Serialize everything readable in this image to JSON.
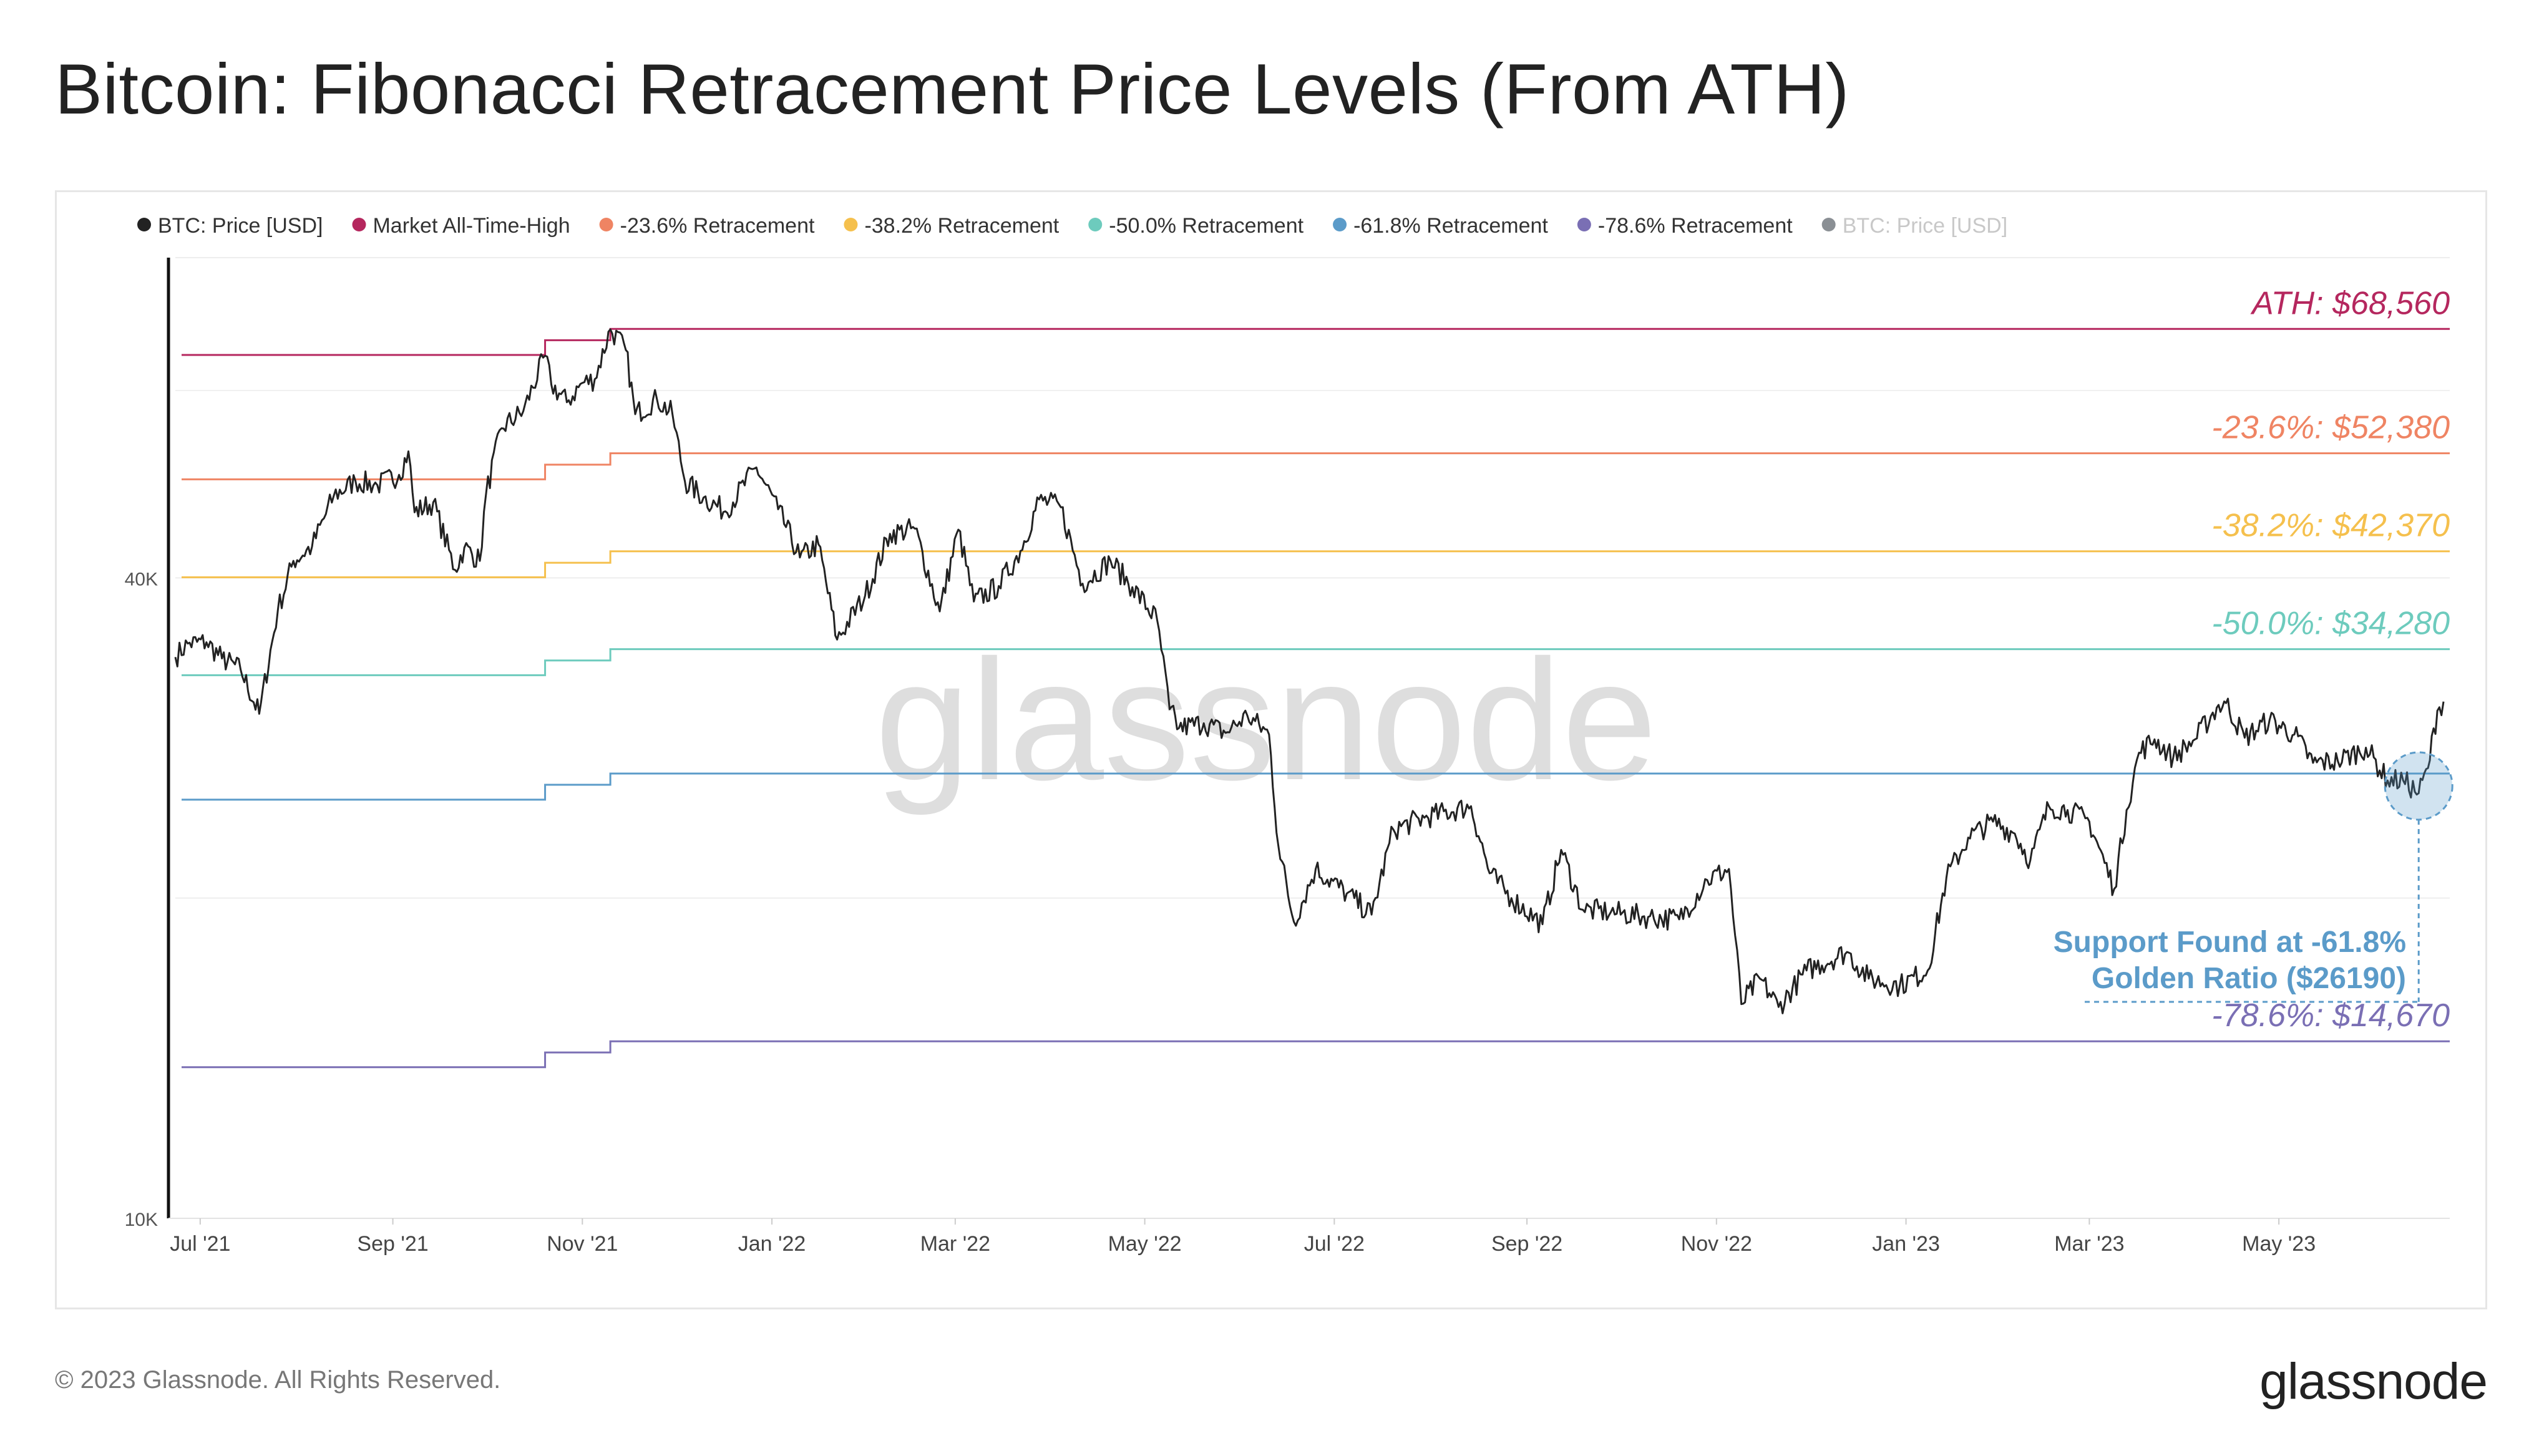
{
  "title": "Bitcoin: Fibonacci Retracement Price Levels (From ATH)",
  "footer": {
    "copyright": "© 2023 Glassnode. All Rights Reserved.",
    "logo_text": "glassnode"
  },
  "watermark": "glassnode",
  "annotation": {
    "line1": "Support Found at -61.8%",
    "line2": "Golden Ratio ($26190)",
    "x": "2023-06-15",
    "y": 26190,
    "color": "#5b9bc9"
  },
  "chart_data": {
    "type": "line",
    "y_scale": "log",
    "ylim": [
      10000,
      80000
    ],
    "xlim": [
      "2021-06-23",
      "2023-06-25"
    ],
    "grid": true,
    "legend_position": "top",
    "y_ticks": [
      {
        "value": 10000,
        "label": "10K"
      },
      {
        "value": 40000,
        "label": "40K"
      }
    ],
    "x_ticks": [
      {
        "date": "2021-07-01",
        "label": "Jul '21"
      },
      {
        "date": "2021-09-01",
        "label": "Sep '21"
      },
      {
        "date": "2021-11-01",
        "label": "Nov '21"
      },
      {
        "date": "2022-01-01",
        "label": "Jan '22"
      },
      {
        "date": "2022-03-01",
        "label": "Mar '22"
      },
      {
        "date": "2022-05-01",
        "label": "May '22"
      },
      {
        "date": "2022-07-01",
        "label": "Jul '22"
      },
      {
        "date": "2022-09-01",
        "label": "Sep '22"
      },
      {
        "date": "2022-11-01",
        "label": "Nov '22"
      },
      {
        "date": "2023-01-01",
        "label": "Jan '23"
      },
      {
        "date": "2023-03-01",
        "label": "Mar '23"
      },
      {
        "date": "2023-05-01",
        "label": "May '23"
      }
    ],
    "legend": [
      {
        "name": "BTC: Price [USD]",
        "color": "#222222",
        "text_color": "#333333"
      },
      {
        "name": "Market All-Time-High",
        "color": "#b5275e",
        "text_color": "#333333"
      },
      {
        "name": "-23.6% Retracement",
        "color": "#ef8463",
        "text_color": "#333333"
      },
      {
        "name": "-38.2% Retracement",
        "color": "#f5c04d",
        "text_color": "#333333"
      },
      {
        "name": "-50.0% Retracement",
        "color": "#6dcbbd",
        "text_color": "#333333"
      },
      {
        "name": "-61.8% Retracement",
        "color": "#5b9bc9",
        "text_color": "#333333"
      },
      {
        "name": "-78.6% Retracement",
        "color": "#7a6fb4",
        "text_color": "#333333"
      },
      {
        "name": "BTC: Price [USD]",
        "color": "#8a8f94",
        "text_color": "#c8c8c8"
      }
    ],
    "level_labels": [
      {
        "text": "ATH: $68,560",
        "color": "#b5275e",
        "value": 68560
      },
      {
        "text": "-23.6%: $52,380",
        "color": "#ef8463",
        "value": 52380
      },
      {
        "text": "-38.2%: $42,370",
        "color": "#f5c04d",
        "value": 42370
      },
      {
        "text": "-50.0%: $34,280",
        "color": "#6dcbbd",
        "value": 34280
      },
      {
        "text": "-78.6%: $14,670",
        "color": "#7a6fb4",
        "value": 14670
      }
    ],
    "levels": [
      {
        "name": "Market All-Time-High",
        "color": "#b5275e",
        "steps": [
          [
            "2021-06-23",
            64800
          ],
          [
            "2021-10-20",
            66900
          ],
          [
            "2021-11-10",
            68560
          ]
        ]
      },
      {
        "name": "-23.6% Retracement",
        "color": "#ef8463",
        "steps": [
          [
            "2021-06-23",
            49510
          ],
          [
            "2021-10-20",
            51110
          ],
          [
            "2021-11-10",
            52380
          ]
        ]
      },
      {
        "name": "-38.2% Retracement",
        "color": "#f5c04d",
        "steps": [
          [
            "2021-06-23",
            40050
          ],
          [
            "2021-10-20",
            41330
          ],
          [
            "2021-11-10",
            42370
          ]
        ]
      },
      {
        "name": "-50.0% Retracement",
        "color": "#6dcbbd",
        "steps": [
          [
            "2021-06-23",
            32400
          ],
          [
            "2021-10-20",
            33450
          ],
          [
            "2021-11-10",
            34280
          ]
        ]
      },
      {
        "name": "-61.8% Retracement",
        "color": "#5b9bc9",
        "steps": [
          [
            "2021-06-23",
            24750
          ],
          [
            "2021-10-20",
            25560
          ],
          [
            "2021-11-10",
            26190
          ]
        ]
      },
      {
        "name": "-78.6% Retracement",
        "color": "#7a6fb4",
        "steps": [
          [
            "2021-06-23",
            13870
          ],
          [
            "2021-10-20",
            14320
          ],
          [
            "2021-11-10",
            14670
          ]
        ]
      }
    ],
    "series": [
      {
        "name": "BTC: Price [USD]",
        "color": "#222222",
        "points": [
          [
            "2021-06-23",
            33700
          ],
          [
            "2021-06-27",
            34700
          ],
          [
            "2021-07-03",
            34800
          ],
          [
            "2021-07-08",
            33600
          ],
          [
            "2021-07-14",
            32800
          ],
          [
            "2021-07-20",
            29800
          ],
          [
            "2021-07-26",
            37300
          ],
          [
            "2021-07-31",
            41500
          ],
          [
            "2021-08-06",
            42800
          ],
          [
            "2021-08-13",
            47800
          ],
          [
            "2021-08-20",
            49300
          ],
          [
            "2021-08-27",
            48900
          ],
          [
            "2021-09-03",
            50000
          ],
          [
            "2021-09-06",
            52600
          ],
          [
            "2021-09-08",
            46100
          ],
          [
            "2021-09-14",
            47100
          ],
          [
            "2021-09-21",
            40700
          ],
          [
            "2021-09-24",
            42700
          ],
          [
            "2021-09-29",
            41500
          ],
          [
            "2021-10-01",
            48000
          ],
          [
            "2021-10-06",
            55300
          ],
          [
            "2021-10-13",
            57400
          ],
          [
            "2021-10-20",
            64700
          ],
          [
            "2021-10-22",
            60800
          ],
          [
            "2021-10-27",
            58500
          ],
          [
            "2021-11-01",
            61000
          ],
          [
            "2021-11-05",
            61500
          ],
          [
            "2021-11-10",
            68500
          ],
          [
            "2021-11-15",
            65500
          ],
          [
            "2021-11-18",
            57000
          ],
          [
            "2021-11-25",
            58900
          ],
          [
            "2021-11-30",
            57000
          ],
          [
            "2021-12-04",
            49300
          ],
          [
            "2021-12-10",
            47600
          ],
          [
            "2021-12-17",
            46200
          ],
          [
            "2021-12-27",
            50800
          ],
          [
            "2022-01-03",
            46400
          ],
          [
            "2022-01-10",
            41800
          ],
          [
            "2022-01-16",
            43000
          ],
          [
            "2022-01-22",
            35000
          ],
          [
            "2022-01-31",
            38500
          ],
          [
            "2022-02-08",
            44000
          ],
          [
            "2022-02-16",
            44500
          ],
          [
            "2022-02-24",
            37200
          ],
          [
            "2022-03-02",
            44400
          ],
          [
            "2022-03-07",
            38000
          ],
          [
            "2022-03-15",
            39300
          ],
          [
            "2022-03-22",
            42400
          ],
          [
            "2022-03-28",
            47400
          ],
          [
            "2022-04-04",
            46600
          ],
          [
            "2022-04-11",
            39500
          ],
          [
            "2022-04-20",
            41500
          ],
          [
            "2022-04-27",
            39200
          ],
          [
            "2022-05-05",
            36500
          ],
          [
            "2022-05-09",
            30100
          ],
          [
            "2022-05-12",
            28900
          ],
          [
            "2022-05-20",
            29200
          ],
          [
            "2022-05-27",
            28600
          ],
          [
            "2022-06-03",
            29700
          ],
          [
            "2022-06-10",
            28500
          ],
          [
            "2022-06-13",
            22400
          ],
          [
            "2022-06-18",
            19000
          ],
          [
            "2022-06-25",
            21300
          ],
          [
            "2022-07-05",
            20200
          ],
          [
            "2022-07-13",
            19300
          ],
          [
            "2022-07-20",
            23200
          ],
          [
            "2022-07-30",
            23800
          ],
          [
            "2022-08-14",
            24400
          ],
          [
            "2022-08-20",
            21100
          ],
          [
            "2022-08-27",
            20000
          ],
          [
            "2022-09-06",
            18900
          ],
          [
            "2022-09-12",
            22200
          ],
          [
            "2022-09-19",
            19500
          ],
          [
            "2022-09-28",
            19400
          ],
          [
            "2022-10-10",
            19200
          ],
          [
            "2022-10-20",
            19100
          ],
          [
            "2022-10-29",
            20800
          ],
          [
            "2022-11-05",
            21300
          ],
          [
            "2022-11-09",
            15900
          ],
          [
            "2022-11-15",
            16800
          ],
          [
            "2022-11-21",
            15800
          ],
          [
            "2022-11-30",
            17100
          ],
          [
            "2022-12-13",
            17800
          ],
          [
            "2022-12-20",
            16800
          ],
          [
            "2022-12-30",
            16550
          ],
          [
            "2023-01-08",
            17100
          ],
          [
            "2023-01-14",
            20900
          ],
          [
            "2023-01-21",
            22800
          ],
          [
            "2023-01-29",
            23600
          ],
          [
            "2023-02-05",
            23000
          ],
          [
            "2023-02-10",
            21700
          ],
          [
            "2023-02-16",
            24400
          ],
          [
            "2023-02-22",
            24200
          ],
          [
            "2023-03-01",
            23600
          ],
          [
            "2023-03-09",
            20400
          ],
          [
            "2023-03-13",
            24200
          ],
          [
            "2023-03-17",
            27400
          ],
          [
            "2023-03-22",
            28200
          ],
          [
            "2023-03-28",
            27100
          ],
          [
            "2023-04-04",
            28200
          ],
          [
            "2023-04-11",
            30200
          ],
          [
            "2023-04-14",
            30500
          ],
          [
            "2023-04-20",
            28300
          ],
          [
            "2023-04-28",
            29400
          ],
          [
            "2023-05-06",
            28500
          ],
          [
            "2023-05-12",
            26800
          ],
          [
            "2023-05-20",
            26900
          ],
          [
            "2023-05-29",
            27700
          ],
          [
            "2023-06-05",
            25800
          ],
          [
            "2023-06-10",
            25800
          ],
          [
            "2023-06-15",
            25100
          ],
          [
            "2023-06-18",
            26500
          ],
          [
            "2023-06-21",
            30000
          ],
          [
            "2023-06-23",
            30600
          ]
        ]
      }
    ]
  }
}
